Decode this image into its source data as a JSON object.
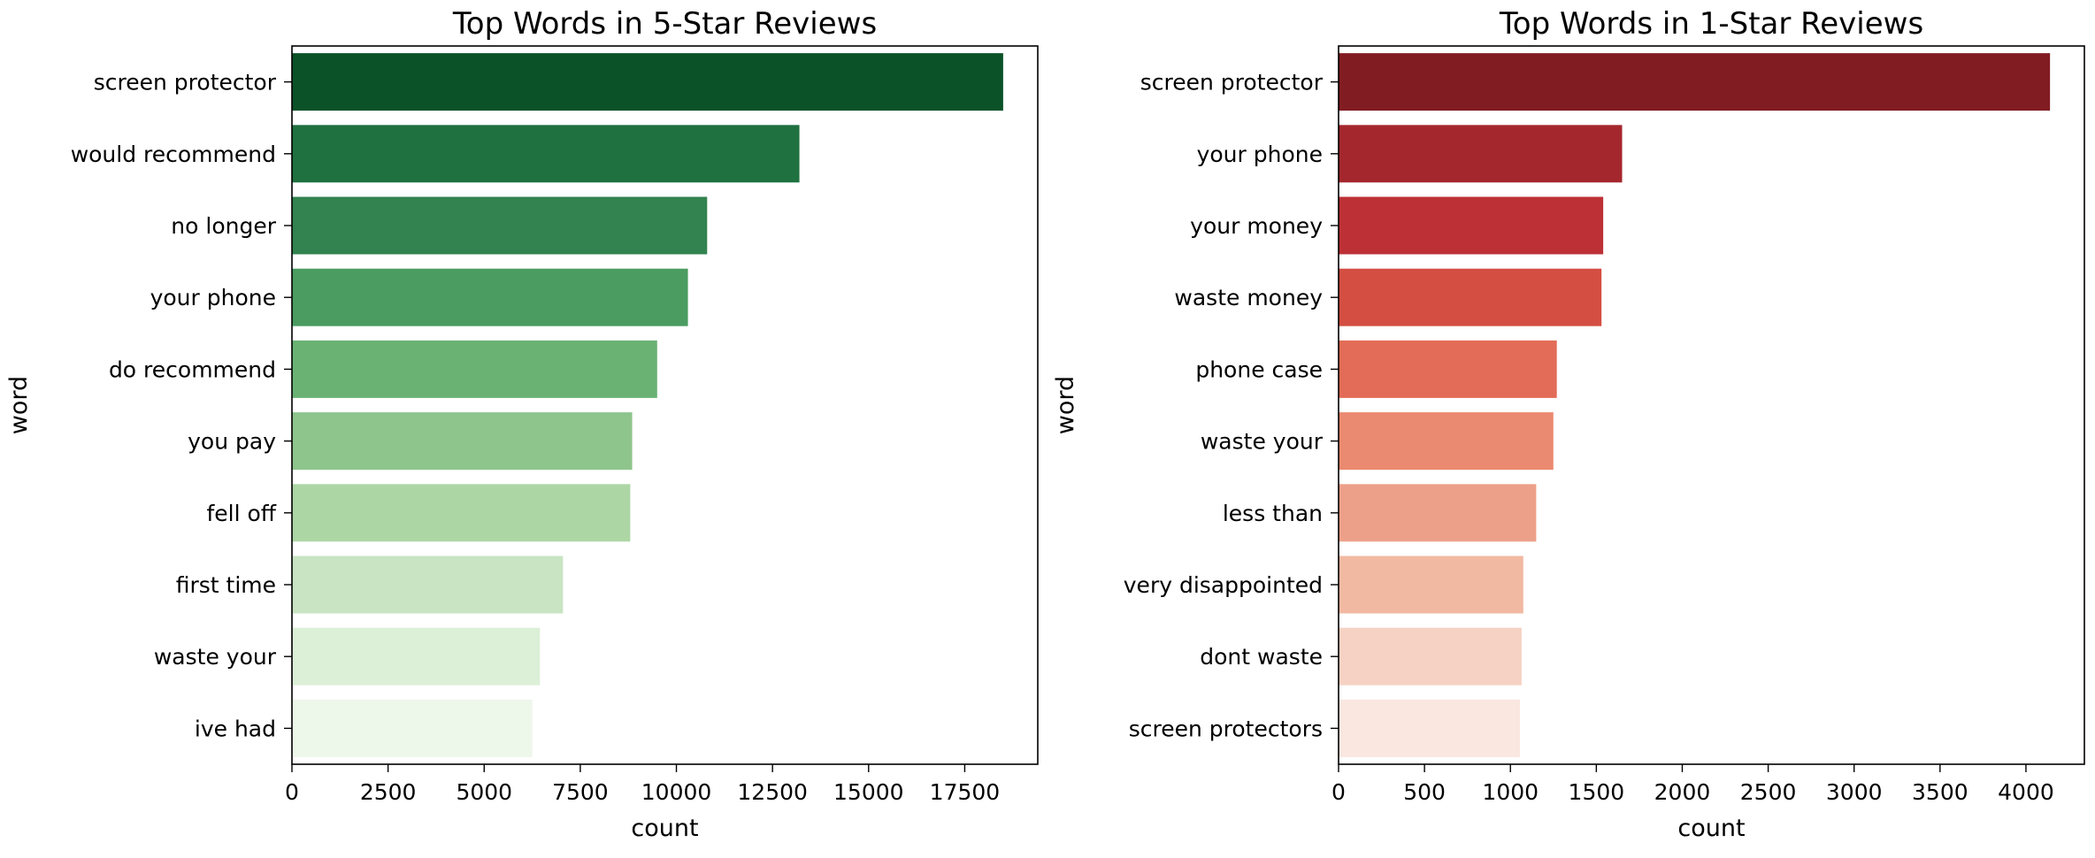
{
  "chart_data": [
    {
      "type": "bar",
      "orientation": "horizontal",
      "title": "Top Words in 5-Star Reviews",
      "xlabel": "count",
      "ylabel": "word",
      "categories": [
        "screen protector",
        "would recommend",
        "no longer",
        "your phone",
        "do recommend",
        "you pay",
        "fell off",
        "first time",
        "waste your",
        "ive had"
      ],
      "values": [
        18500,
        13200,
        10800,
        10300,
        9500,
        8850,
        8800,
        7050,
        6450,
        6250
      ],
      "xlim": [
        0,
        19400
      ],
      "xticks": [
        "0",
        "2500",
        "5000",
        "7500",
        "10000",
        "12500",
        "15000",
        "17500"
      ],
      "xtick_values": [
        0,
        2500,
        5000,
        7500,
        10000,
        12500,
        15000,
        17500
      ],
      "colors": [
        "#0b5229",
        "#1f7140",
        "#32834f",
        "#4a9c60",
        "#6ab274",
        "#8ec58c",
        "#add6a5",
        "#c8e4c2",
        "#dcefd7",
        "#edf7ea"
      ],
      "grid": false
    },
    {
      "type": "bar",
      "orientation": "horizontal",
      "title": "Top Words in 1-Star Reviews",
      "xlabel": "count",
      "ylabel": "word",
      "categories": [
        "screen protector",
        "your phone",
        "your money",
        "waste money",
        "phone case",
        "waste your",
        "less than",
        "very disappointed",
        "dont waste",
        "screen protectors"
      ],
      "values": [
        4140,
        1650,
        1540,
        1530,
        1270,
        1250,
        1150,
        1075,
        1065,
        1055
      ],
      "xlim": [
        0,
        4340
      ],
      "xticks": [
        "0",
        "500",
        "1000",
        "1500",
        "2000",
        "2500",
        "3000",
        "3500",
        "4000"
      ],
      "xtick_values": [
        0,
        500,
        1000,
        1500,
        2000,
        2500,
        3000,
        3500,
        4000
      ],
      "colors": [
        "#821c23",
        "#a4272d",
        "#bd3136",
        "#d44e42",
        "#e26c57",
        "#ea8a70",
        "#eda089",
        "#f1b9a2",
        "#f5d2c3",
        "#f9e7e0"
      ],
      "grid": false
    }
  ]
}
